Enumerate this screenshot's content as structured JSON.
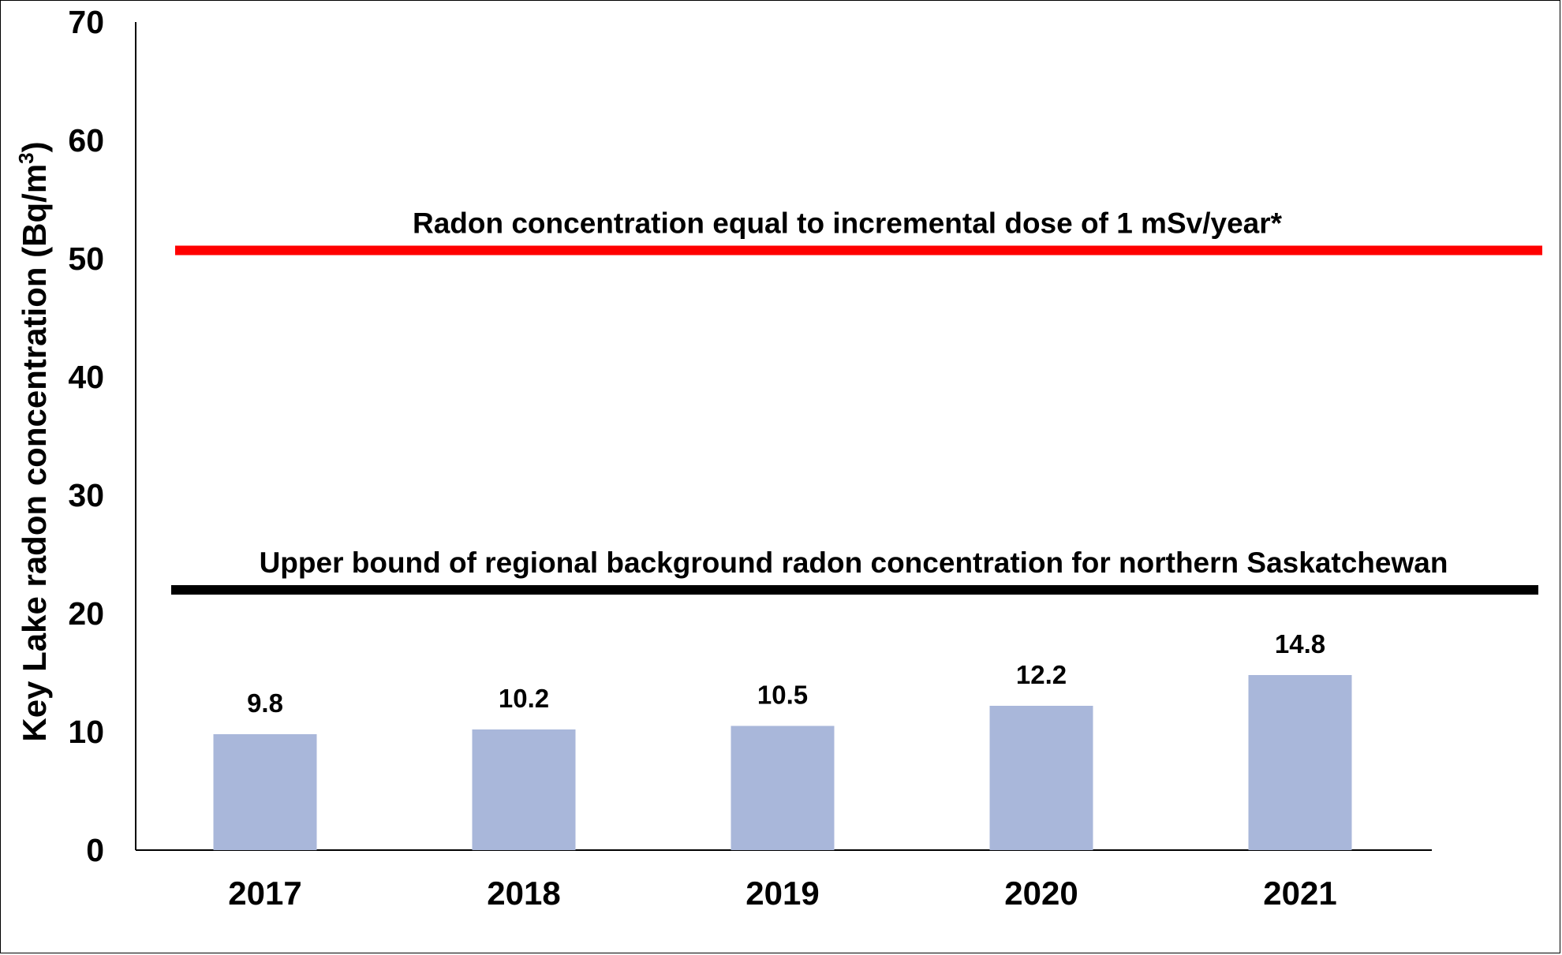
{
  "chart_data": {
    "type": "bar",
    "title": "",
    "xlabel": "",
    "ylabel": "Key Lake radon concentration (Bq/m",
    "ylabel_superscript": "3",
    "ylabel_suffix": ")",
    "ylim": [
      0,
      70
    ],
    "yticks": [
      "0",
      "10",
      "20",
      "30",
      "40",
      "50",
      "60",
      "70"
    ],
    "grid": false,
    "legend": "none",
    "categories": [
      "2017",
      "2018",
      "2019",
      "2020",
      "2021"
    ],
    "values": [
      9.8,
      10.2,
      10.5,
      12.2,
      14.8
    ],
    "data_labels": [
      "9.8",
      "10.2",
      "10.5",
      "12.2",
      "14.8"
    ],
    "bar_color": "#a9b7da",
    "reference_lines": [
      {
        "value": 50.7,
        "color": "#ff0000",
        "label": "Radon concentration equal to incremental dose of 1 mSv/year*"
      },
      {
        "value": 22,
        "color": "#000000",
        "label": "Upper bound of regional background radon concentration for northern Saskatchewan"
      }
    ]
  }
}
